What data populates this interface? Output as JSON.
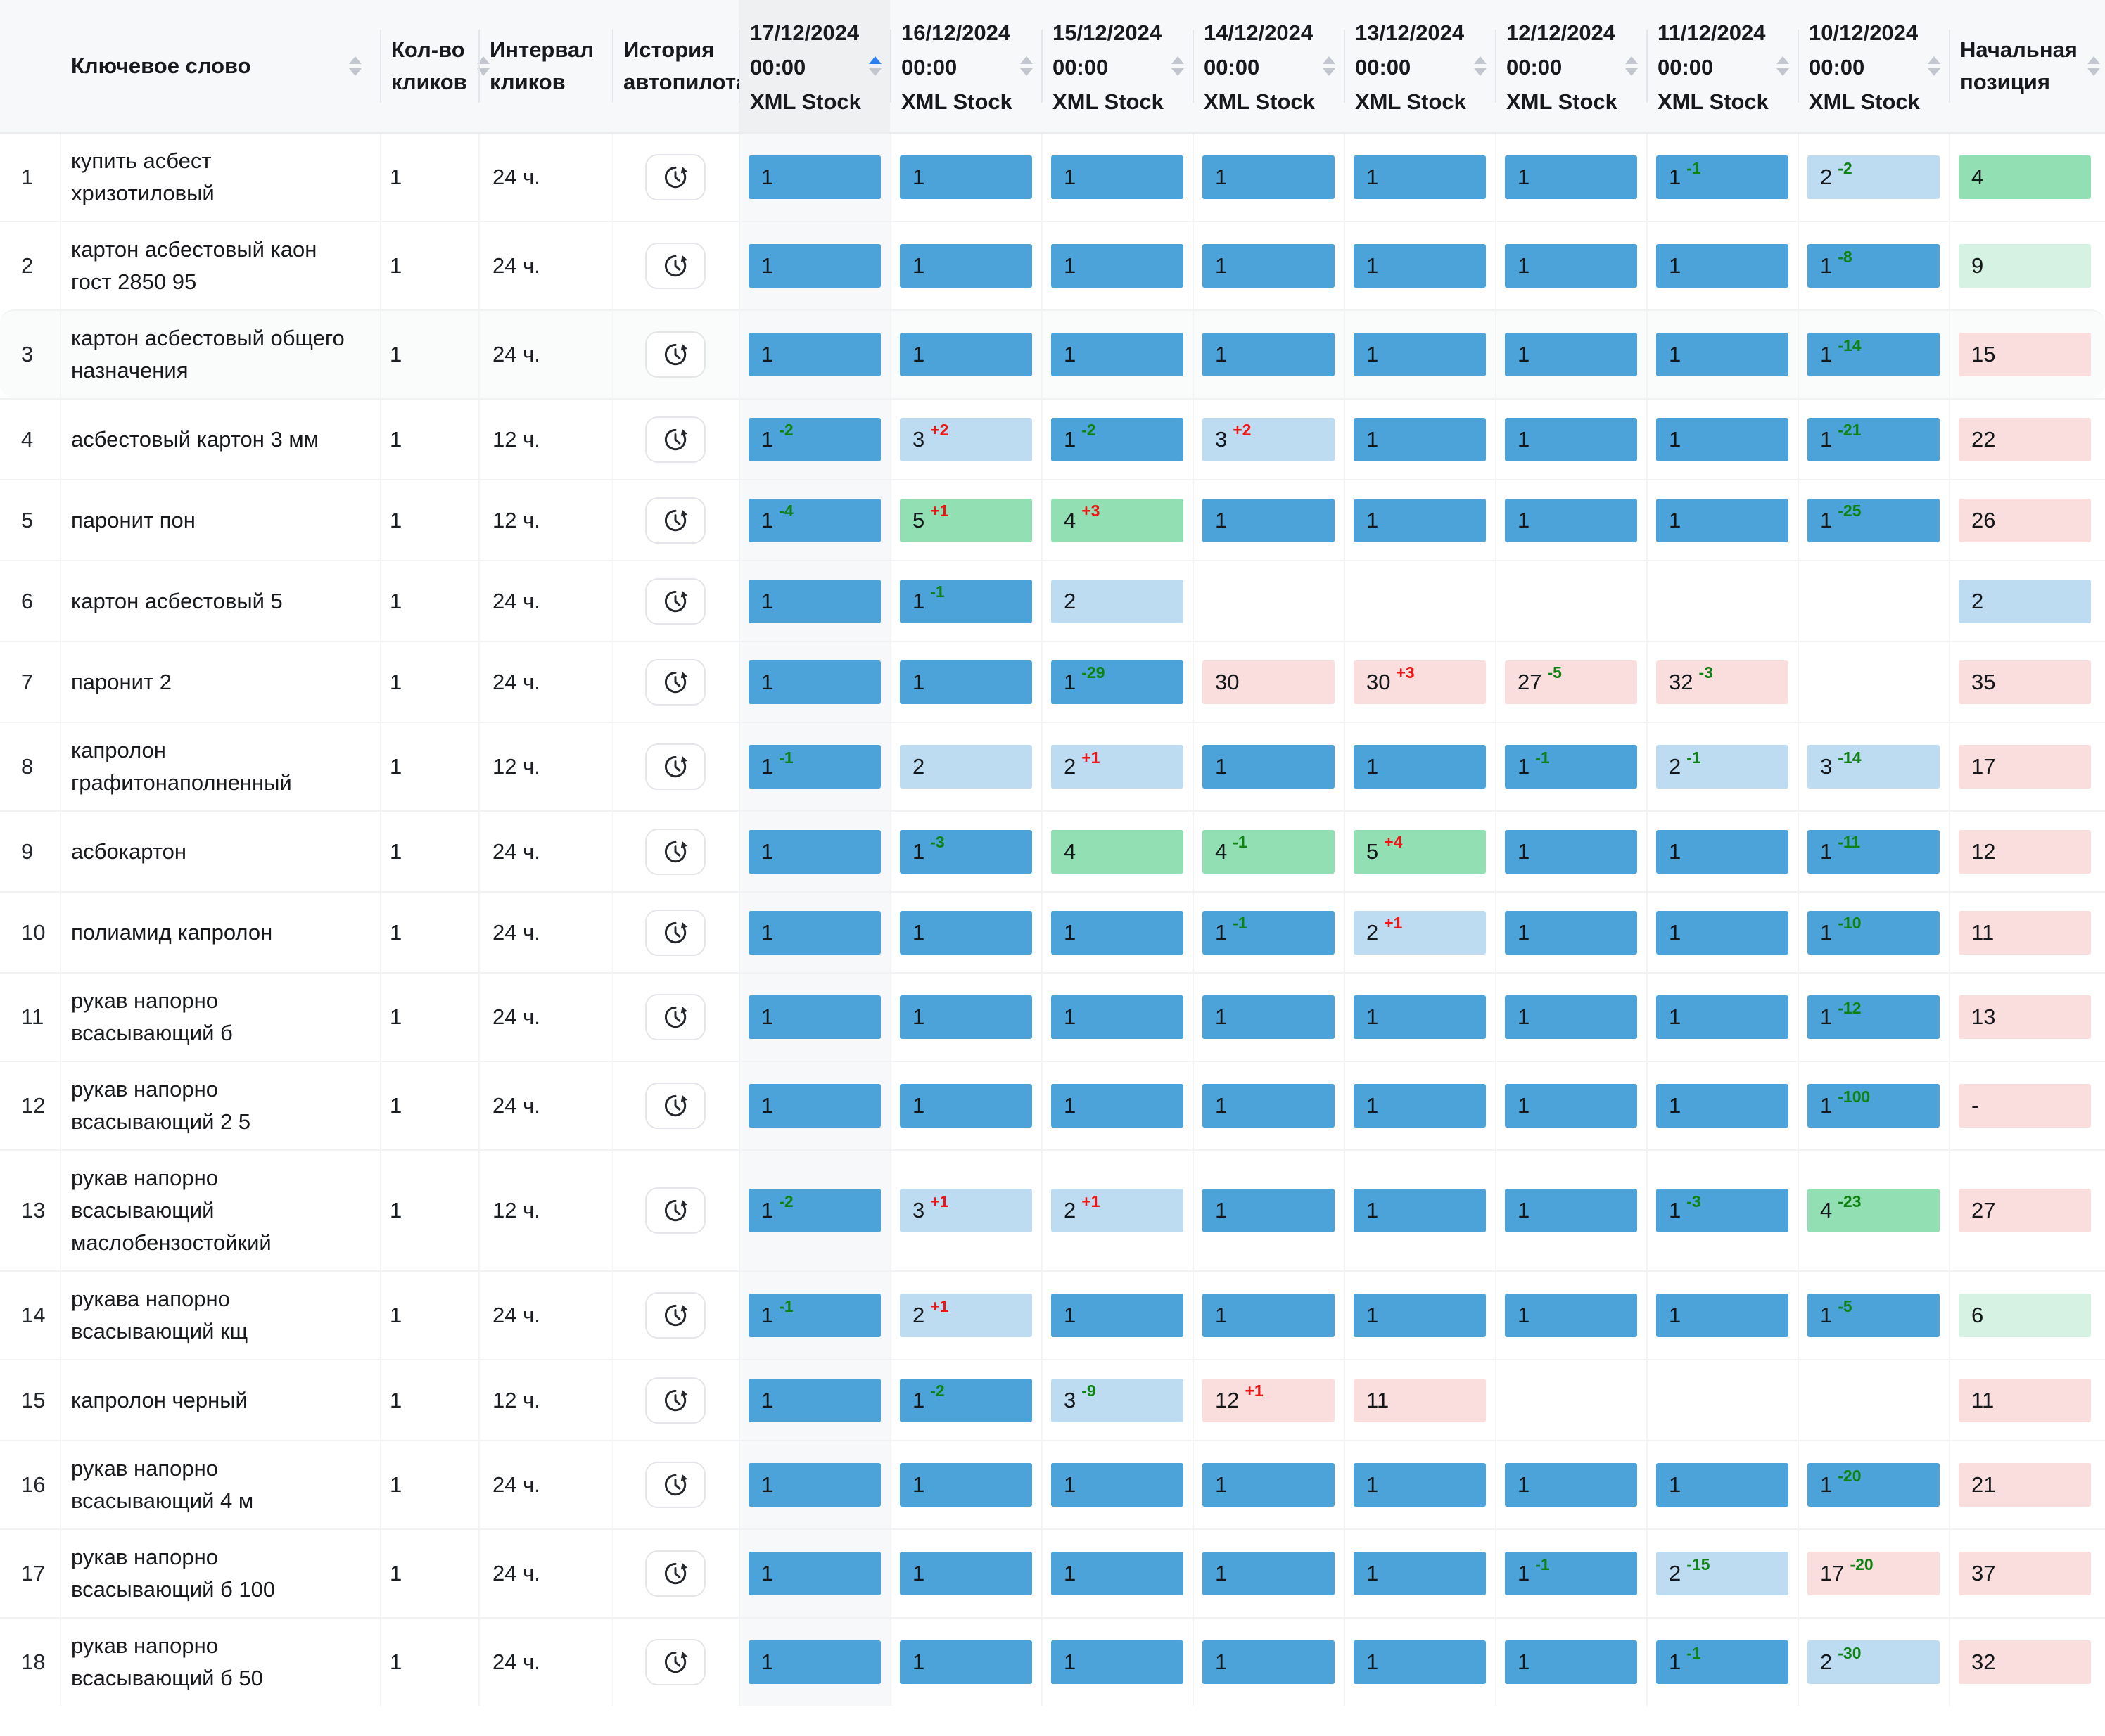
{
  "colors": {
    "bar_blue": "#4ba3d9",
    "bar_light_blue": "#bddcf2",
    "bar_green": "#93dfb4",
    "bar_light_green": "#d5f2e2",
    "bar_pink": "#fadddd",
    "delta_positive_red": "#f01414",
    "delta_negative_green": "#0e8212",
    "sort_active_blue": "#2e7ef2",
    "header_bg": "#f7f8f9",
    "sorted_column_bg": "#eef0f2"
  },
  "table": {
    "header": {
      "keyword": {
        "label": "Ключевое слово",
        "sortable": true
      },
      "clicks": {
        "label": "Кол-во кликов",
        "sortable": true
      },
      "interval": {
        "label": "Интервал кликов",
        "sortable": false
      },
      "history": {
        "label": "История автопилота",
        "sortable": false
      },
      "dates": [
        {
          "date": "17/12/2024",
          "time": "00:00",
          "source": "XML Stock",
          "sort": "asc"
        },
        {
          "date": "16/12/2024",
          "time": "00:00",
          "source": "XML Stock",
          "sort": ""
        },
        {
          "date": "15/12/2024",
          "time": "00:00",
          "source": "XML Stock",
          "sort": ""
        },
        {
          "date": "14/12/2024",
          "time": "00:00",
          "source": "XML Stock",
          "sort": ""
        },
        {
          "date": "13/12/2024",
          "time": "00:00",
          "source": "XML Stock",
          "sort": ""
        },
        {
          "date": "12/12/2024",
          "time": "00:00",
          "source": "XML Stock",
          "sort": ""
        },
        {
          "date": "11/12/2024",
          "time": "00:00",
          "source": "XML Stock",
          "sort": ""
        },
        {
          "date": "10/12/2024",
          "time": "00:00",
          "source": "XML Stock",
          "sort": ""
        }
      ],
      "initial": {
        "label": "Начальная позиция",
        "sortable": true
      }
    },
    "rows": [
      {
        "n": "1",
        "keyword": "купить асбест хризотиловый",
        "clicks": "1",
        "interval": "24 ч.",
        "highlight": false,
        "cells": [
          {
            "v": "1",
            "bg": "blue"
          },
          {
            "v": "1",
            "bg": "blue"
          },
          {
            "v": "1",
            "bg": "blue"
          },
          {
            "v": "1",
            "bg": "blue"
          },
          {
            "v": "1",
            "bg": "blue"
          },
          {
            "v": "1",
            "bg": "blue"
          },
          {
            "v": "1",
            "d": "-1",
            "bg": "blue"
          },
          {
            "v": "2",
            "d": "-2",
            "bg": "lightblue"
          }
        ],
        "initial": {
          "v": "4",
          "bg": "green"
        }
      },
      {
        "n": "2",
        "keyword": "картон асбестовый каон гост 2850 95",
        "clicks": "1",
        "interval": "24 ч.",
        "highlight": false,
        "cells": [
          {
            "v": "1",
            "bg": "blue"
          },
          {
            "v": "1",
            "bg": "blue"
          },
          {
            "v": "1",
            "bg": "blue"
          },
          {
            "v": "1",
            "bg": "blue"
          },
          {
            "v": "1",
            "bg": "blue"
          },
          {
            "v": "1",
            "bg": "blue"
          },
          {
            "v": "1",
            "bg": "blue"
          },
          {
            "v": "1",
            "d": "-8",
            "bg": "blue"
          }
        ],
        "initial": {
          "v": "9",
          "bg": "lightgreen"
        }
      },
      {
        "n": "3",
        "keyword": "картон асбестовый общего назначения",
        "clicks": "1",
        "interval": "24 ч.",
        "highlight": true,
        "cells": [
          {
            "v": "1",
            "bg": "blue"
          },
          {
            "v": "1",
            "bg": "blue"
          },
          {
            "v": "1",
            "bg": "blue"
          },
          {
            "v": "1",
            "bg": "blue"
          },
          {
            "v": "1",
            "bg": "blue"
          },
          {
            "v": "1",
            "bg": "blue"
          },
          {
            "v": "1",
            "bg": "blue"
          },
          {
            "v": "1",
            "d": "-14",
            "bg": "blue"
          }
        ],
        "initial": {
          "v": "15",
          "bg": "pink"
        }
      },
      {
        "n": "4",
        "keyword": "асбестовый картон 3 мм",
        "clicks": "1",
        "interval": "12 ч.",
        "highlight": false,
        "cells": [
          {
            "v": "1",
            "d": "-2",
            "bg": "blue"
          },
          {
            "v": "3",
            "d": "+2",
            "bg": "lightblue"
          },
          {
            "v": "1",
            "d": "-2",
            "bg": "blue"
          },
          {
            "v": "3",
            "d": "+2",
            "bg": "lightblue"
          },
          {
            "v": "1",
            "bg": "blue"
          },
          {
            "v": "1",
            "bg": "blue"
          },
          {
            "v": "1",
            "bg": "blue"
          },
          {
            "v": "1",
            "d": "-21",
            "bg": "blue"
          }
        ],
        "initial": {
          "v": "22",
          "bg": "pink"
        }
      },
      {
        "n": "5",
        "keyword": "паронит пон",
        "clicks": "1",
        "interval": "12 ч.",
        "highlight": false,
        "cells": [
          {
            "v": "1",
            "d": "-4",
            "bg": "blue"
          },
          {
            "v": "5",
            "d": "+1",
            "bg": "green"
          },
          {
            "v": "4",
            "d": "+3",
            "bg": "green"
          },
          {
            "v": "1",
            "bg": "blue"
          },
          {
            "v": "1",
            "bg": "blue"
          },
          {
            "v": "1",
            "bg": "blue"
          },
          {
            "v": "1",
            "bg": "blue"
          },
          {
            "v": "1",
            "d": "-25",
            "bg": "blue"
          }
        ],
        "initial": {
          "v": "26",
          "bg": "pink"
        }
      },
      {
        "n": "6",
        "keyword": "картон асбестовый 5",
        "clicks": "1",
        "interval": "24 ч.",
        "highlight": false,
        "cells": [
          {
            "v": "1",
            "bg": "blue"
          },
          {
            "v": "1",
            "d": "-1",
            "bg": "blue"
          },
          {
            "v": "2",
            "bg": "lightblue"
          },
          null,
          null,
          null,
          null,
          null
        ],
        "initial": {
          "v": "2",
          "bg": "lightblue"
        }
      },
      {
        "n": "7",
        "keyword": "паронит 2",
        "clicks": "1",
        "interval": "24 ч.",
        "highlight": false,
        "cells": [
          {
            "v": "1",
            "bg": "blue"
          },
          {
            "v": "1",
            "bg": "blue"
          },
          {
            "v": "1",
            "d": "-29",
            "bg": "blue"
          },
          {
            "v": "30",
            "bg": "pink"
          },
          {
            "v": "30",
            "d": "+3",
            "bg": "pink"
          },
          {
            "v": "27",
            "d": "-5",
            "bg": "pink"
          },
          {
            "v": "32",
            "d": "-3",
            "bg": "pink"
          },
          null
        ],
        "initial": {
          "v": "35",
          "bg": "pink"
        }
      },
      {
        "n": "8",
        "keyword": "капролон графитонаполненный",
        "clicks": "1",
        "interval": "12 ч.",
        "highlight": false,
        "cells": [
          {
            "v": "1",
            "d": "-1",
            "bg": "blue"
          },
          {
            "v": "2",
            "bg": "lightblue"
          },
          {
            "v": "2",
            "d": "+1",
            "bg": "lightblue"
          },
          {
            "v": "1",
            "bg": "blue"
          },
          {
            "v": "1",
            "bg": "blue"
          },
          {
            "v": "1",
            "d": "-1",
            "bg": "blue"
          },
          {
            "v": "2",
            "d": "-1",
            "bg": "lightblue"
          },
          {
            "v": "3",
            "d": "-14",
            "bg": "lightblue"
          }
        ],
        "initial": {
          "v": "17",
          "bg": "pink"
        }
      },
      {
        "n": "9",
        "keyword": "асбокартон",
        "clicks": "1",
        "interval": "24 ч.",
        "highlight": false,
        "cells": [
          {
            "v": "1",
            "bg": "blue"
          },
          {
            "v": "1",
            "d": "-3",
            "bg": "blue"
          },
          {
            "v": "4",
            "bg": "green"
          },
          {
            "v": "4",
            "d": "-1",
            "bg": "green"
          },
          {
            "v": "5",
            "d": "+4",
            "bg": "green"
          },
          {
            "v": "1",
            "bg": "blue"
          },
          {
            "v": "1",
            "bg": "blue"
          },
          {
            "v": "1",
            "d": "-11",
            "bg": "blue"
          }
        ],
        "initial": {
          "v": "12",
          "bg": "pink"
        }
      },
      {
        "n": "10",
        "keyword": "полиамид капролон",
        "clicks": "1",
        "interval": "24 ч.",
        "highlight": false,
        "cells": [
          {
            "v": "1",
            "bg": "blue"
          },
          {
            "v": "1",
            "bg": "blue"
          },
          {
            "v": "1",
            "bg": "blue"
          },
          {
            "v": "1",
            "d": "-1",
            "bg": "blue"
          },
          {
            "v": "2",
            "d": "+1",
            "bg": "lightblue"
          },
          {
            "v": "1",
            "bg": "blue"
          },
          {
            "v": "1",
            "bg": "blue"
          },
          {
            "v": "1",
            "d": "-10",
            "bg": "blue"
          }
        ],
        "initial": {
          "v": "11",
          "bg": "pink"
        }
      },
      {
        "n": "11",
        "keyword": "рукав напорно всасывающий б",
        "clicks": "1",
        "interval": "24 ч.",
        "highlight": false,
        "cells": [
          {
            "v": "1",
            "bg": "blue"
          },
          {
            "v": "1",
            "bg": "blue"
          },
          {
            "v": "1",
            "bg": "blue"
          },
          {
            "v": "1",
            "bg": "blue"
          },
          {
            "v": "1",
            "bg": "blue"
          },
          {
            "v": "1",
            "bg": "blue"
          },
          {
            "v": "1",
            "bg": "blue"
          },
          {
            "v": "1",
            "d": "-12",
            "bg": "blue"
          }
        ],
        "initial": {
          "v": "13",
          "bg": "pink"
        }
      },
      {
        "n": "12",
        "keyword": "рукав напорно всасывающий 2 5",
        "clicks": "1",
        "interval": "24 ч.",
        "highlight": false,
        "cells": [
          {
            "v": "1",
            "bg": "blue"
          },
          {
            "v": "1",
            "bg": "blue"
          },
          {
            "v": "1",
            "bg": "blue"
          },
          {
            "v": "1",
            "bg": "blue"
          },
          {
            "v": "1",
            "bg": "blue"
          },
          {
            "v": "1",
            "bg": "blue"
          },
          {
            "v": "1",
            "bg": "blue"
          },
          {
            "v": "1",
            "d": "-100",
            "bg": "blue"
          }
        ],
        "initial": {
          "v": "-",
          "bg": "pink"
        }
      },
      {
        "n": "13",
        "keyword": "рукав напорно всасывающий маслобензостойкий",
        "clicks": "1",
        "interval": "12 ч.",
        "highlight": false,
        "cells": [
          {
            "v": "1",
            "d": "-2",
            "bg": "blue"
          },
          {
            "v": "3",
            "d": "+1",
            "bg": "lightblue"
          },
          {
            "v": "2",
            "d": "+1",
            "bg": "lightblue"
          },
          {
            "v": "1",
            "bg": "blue"
          },
          {
            "v": "1",
            "bg": "blue"
          },
          {
            "v": "1",
            "bg": "blue"
          },
          {
            "v": "1",
            "d": "-3",
            "bg": "blue"
          },
          {
            "v": "4",
            "d": "-23",
            "bg": "green"
          }
        ],
        "initial": {
          "v": "27",
          "bg": "pink"
        }
      },
      {
        "n": "14",
        "keyword": "рукава напорно всасывающий кщ",
        "clicks": "1",
        "interval": "24 ч.",
        "highlight": false,
        "cells": [
          {
            "v": "1",
            "d": "-1",
            "bg": "blue"
          },
          {
            "v": "2",
            "d": "+1",
            "bg": "lightblue"
          },
          {
            "v": "1",
            "bg": "blue"
          },
          {
            "v": "1",
            "bg": "blue"
          },
          {
            "v": "1",
            "bg": "blue"
          },
          {
            "v": "1",
            "bg": "blue"
          },
          {
            "v": "1",
            "bg": "blue"
          },
          {
            "v": "1",
            "d": "-5",
            "bg": "blue"
          }
        ],
        "initial": {
          "v": "6",
          "bg": "lightgreen"
        }
      },
      {
        "n": "15",
        "keyword": "капролон черный",
        "clicks": "1",
        "interval": "12 ч.",
        "highlight": false,
        "cells": [
          {
            "v": "1",
            "bg": "blue"
          },
          {
            "v": "1",
            "d": "-2",
            "bg": "blue"
          },
          {
            "v": "3",
            "d": "-9",
            "bg": "lightblue"
          },
          {
            "v": "12",
            "d": "+1",
            "bg": "pink"
          },
          {
            "v": "11",
            "bg": "pink"
          },
          null,
          null,
          null
        ],
        "initial": {
          "v": "11",
          "bg": "pink"
        }
      },
      {
        "n": "16",
        "keyword": "рукав напорно всасывающий 4 м",
        "clicks": "1",
        "interval": "24 ч.",
        "highlight": false,
        "cells": [
          {
            "v": "1",
            "bg": "blue"
          },
          {
            "v": "1",
            "bg": "blue"
          },
          {
            "v": "1",
            "bg": "blue"
          },
          {
            "v": "1",
            "bg": "blue"
          },
          {
            "v": "1",
            "bg": "blue"
          },
          {
            "v": "1",
            "bg": "blue"
          },
          {
            "v": "1",
            "bg": "blue"
          },
          {
            "v": "1",
            "d": "-20",
            "bg": "blue"
          }
        ],
        "initial": {
          "v": "21",
          "bg": "pink"
        }
      },
      {
        "n": "17",
        "keyword": "рукав напорно всасывающий б 100",
        "clicks": "1",
        "interval": "24 ч.",
        "highlight": false,
        "cells": [
          {
            "v": "1",
            "bg": "blue"
          },
          {
            "v": "1",
            "bg": "blue"
          },
          {
            "v": "1",
            "bg": "blue"
          },
          {
            "v": "1",
            "bg": "blue"
          },
          {
            "v": "1",
            "bg": "blue"
          },
          {
            "v": "1",
            "d": "-1",
            "bg": "blue"
          },
          {
            "v": "2",
            "d": "-15",
            "bg": "lightblue"
          },
          {
            "v": "17",
            "d": "-20",
            "bg": "pink"
          }
        ],
        "initial": {
          "v": "37",
          "bg": "pink"
        }
      },
      {
        "n": "18",
        "keyword": "рукав напорно всасывающий б 50",
        "clicks": "1",
        "interval": "24 ч.",
        "highlight": false,
        "cells": [
          {
            "v": "1",
            "bg": "blue"
          },
          {
            "v": "1",
            "bg": "blue"
          },
          {
            "v": "1",
            "bg": "blue"
          },
          {
            "v": "1",
            "bg": "blue"
          },
          {
            "v": "1",
            "bg": "blue"
          },
          {
            "v": "1",
            "bg": "blue"
          },
          {
            "v": "1",
            "d": "-1",
            "bg": "blue"
          },
          {
            "v": "2",
            "d": "-30",
            "bg": "lightblue"
          }
        ],
        "initial": {
          "v": "32",
          "bg": "pink"
        }
      }
    ]
  }
}
